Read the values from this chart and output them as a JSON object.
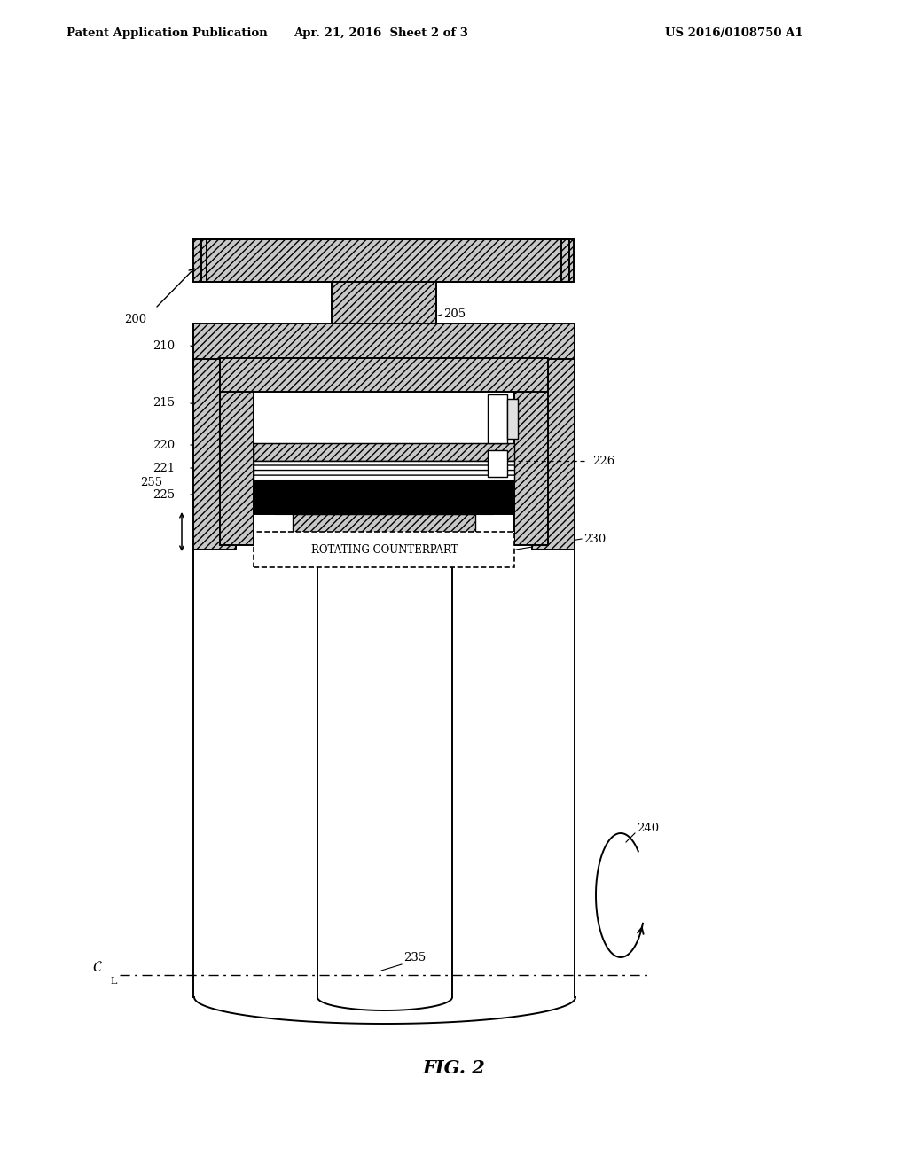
{
  "bg_color": "#ffffff",
  "header_left": "Patent Application Publication",
  "header_center": "Apr. 21, 2016  Sheet 2 of 3",
  "header_right": "US 2016/0108750 A1",
  "fig_label": "FIG. 2",
  "hatch_gray": "#c8c8c8",
  "hatch_pattern": "////",
  "cross_hatch": "XXXX"
}
